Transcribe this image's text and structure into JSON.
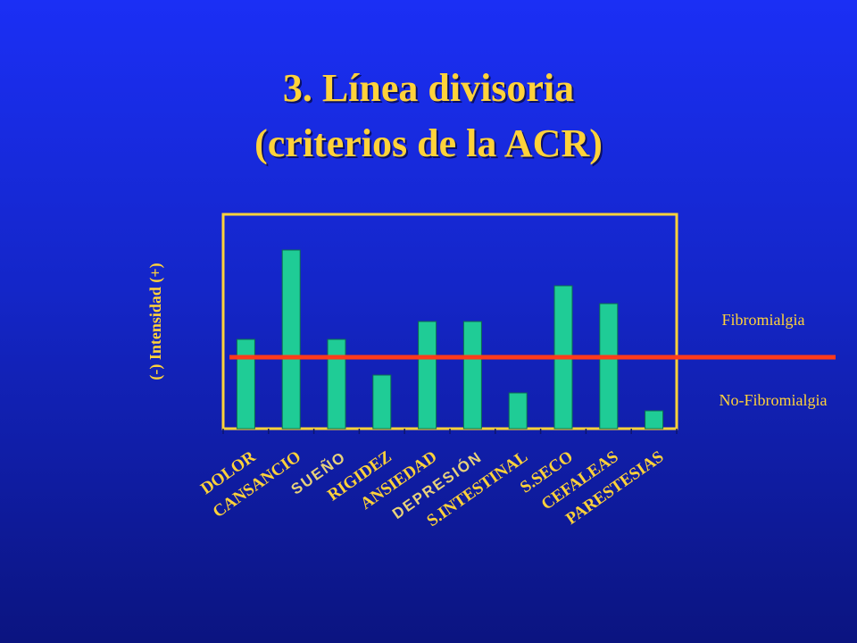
{
  "title": {
    "line1": "3. Línea divisoria",
    "line2": "(criterios de la ACR)"
  },
  "colors": {
    "background": "#1426c8",
    "title": "#ffd23a",
    "bar": "#1fcc96",
    "frame": "#ffd23a",
    "threshold_line": "#ff3a1a",
    "label_yellow": "#ffd23a",
    "label_pale": "#e8d27a"
  },
  "chart_data": {
    "type": "bar",
    "ylabel": "(-)    Intensidad    (+)",
    "categories": [
      "DOLOR",
      "CANSANCIO",
      "SUEÑO",
      "RIGIDEZ",
      "ANSIEDAD",
      "DEPRESIÓN",
      "S.INTESTINAL",
      "S.SECO",
      "CEFALEAS",
      "PARESTESIAS"
    ],
    "values": [
      5,
      10,
      5,
      3,
      6,
      6,
      2,
      8,
      7,
      1
    ],
    "ylim": [
      0,
      12
    ],
    "threshold": 4,
    "threshold_labels": {
      "above": "Fibromialgia",
      "below": "No-Fibromialgia"
    },
    "muted_categories": [
      "SUEÑO",
      "DEPRESIÓN"
    ],
    "grid": false
  }
}
